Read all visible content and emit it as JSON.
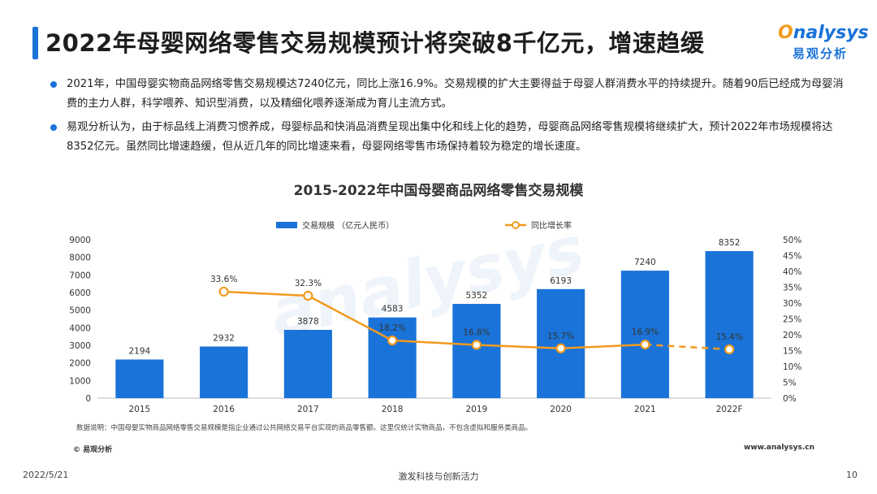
{
  "header": {
    "title": "2022年母婴网络零售交易规模预计将突破8千亿元，增速趋缓",
    "logo_text": "nalysys",
    "logo_sub": "易观分析"
  },
  "bullets": [
    "2021年，中国母婴实物商品网络零售交易规模达7240亿元，同比上涨16.9%。交易规模的扩大主要得益于母婴人群消费水平的持续提升。随着90后已经成为母婴消费的主力人群，科学喂养、知识型消费，以及精细化喂养逐渐成为育儿主流方式。",
    "易观分析认为，由于标品线上消费习惯养成，母婴标品和快消品消费呈现出集中化和线上化的趋势，母婴商品网络零售规模将继续扩大，预计2022年市场规模将达8352亿元。虽然同比增速趋缓，但从近几年的同比增速来看，母婴网络零售市场保持着较为稳定的增长速度。"
  ],
  "chart_data": {
    "type": "bar",
    "title": "2015-2022年中国母婴商品网络零售交易规模",
    "categories": [
      "2015",
      "2016",
      "2017",
      "2018",
      "2019",
      "2020",
      "2021",
      "2022F"
    ],
    "series": [
      {
        "name": "交易规模 （亿元人民币）",
        "type": "bar",
        "axis": "left",
        "values": [
          2194,
          2932,
          3878,
          4583,
          5352,
          6193,
          7240,
          8352
        ],
        "labels": [
          "2194",
          "2932",
          "3878",
          "4583",
          "5352",
          "6193",
          "7240",
          "8352"
        ],
        "color": "#1a73d9"
      },
      {
        "name": "同比增长率",
        "type": "line",
        "axis": "right",
        "values": [
          null,
          33.6,
          32.3,
          18.2,
          16.8,
          15.7,
          16.9,
          15.4
        ],
        "labels": [
          "",
          "33.6%",
          "32.3%",
          "18.2%",
          "16.8%",
          "15.7%",
          "16.9%",
          "15.4%"
        ],
        "color": "#f29a1f",
        "dashed_from_index": 6
      }
    ],
    "ylim_left": [
      0,
      9000
    ],
    "yticks_left": [
      "0",
      "1000",
      "2000",
      "3000",
      "4000",
      "5000",
      "6000",
      "7000",
      "8000",
      "9000"
    ],
    "ylim_right": [
      0,
      50
    ],
    "yticks_right": [
      "0%",
      "5%",
      "10%",
      "15%",
      "20%",
      "25%",
      "30%",
      "35%",
      "40%",
      "45%",
      "50%"
    ],
    "legend_position": "top"
  },
  "footer": {
    "note": "数据说明：中国母婴实物商品网络零售交易规模是指企业通过公共网络交易平台实现的商品零售额。这里仅统计实物商品，不包含虚拟和服务类商品。",
    "source": "© 易观分析",
    "website": "www.analysys.cn",
    "date": "2022/5/21",
    "slogan": "激发科技与创新活力",
    "page": "10"
  }
}
